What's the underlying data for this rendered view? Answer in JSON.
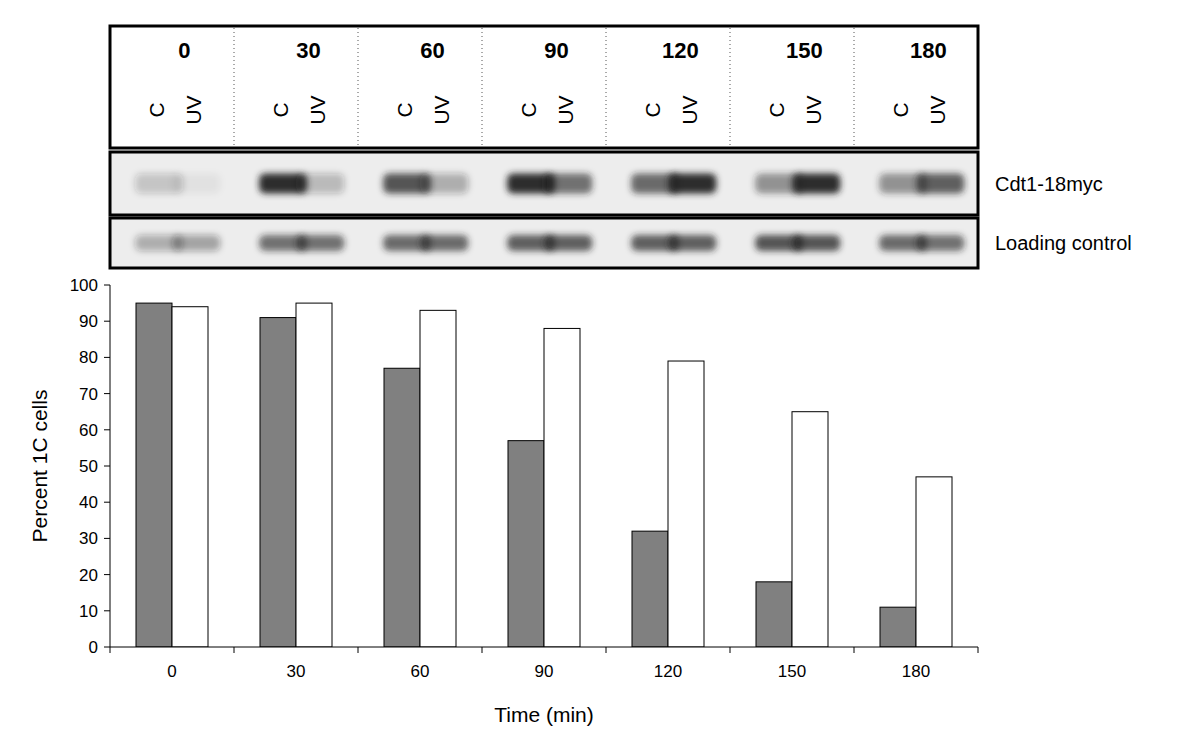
{
  "blot": {
    "times": [
      "0",
      "30",
      "60",
      "90",
      "120",
      "150",
      "180"
    ],
    "lane_labels": [
      "C",
      "UV"
    ],
    "bands": [
      {
        "label": "Cdt1-18myc",
        "intensity": [
          0.2,
          0.05,
          0.95,
          0.25,
          0.75,
          0.3,
          0.95,
          0.6,
          0.65,
          0.95,
          0.45,
          0.95,
          0.45,
          0.7
        ]
      },
      {
        "label": "Loading control",
        "intensity": [
          0.3,
          0.35,
          0.6,
          0.6,
          0.65,
          0.65,
          0.7,
          0.7,
          0.7,
          0.7,
          0.75,
          0.75,
          0.65,
          0.6
        ]
      }
    ]
  },
  "chart_data": {
    "type": "bar",
    "x_label": "Time (min)",
    "y_label": "Percent 1C cells",
    "categories": [
      "0",
      "30",
      "60",
      "90",
      "120",
      "150",
      "180"
    ],
    "series": [
      {
        "color": "#808080",
        "values": [
          95,
          91,
          77,
          57,
          32,
          18,
          11
        ]
      },
      {
        "color": "#ffffff",
        "values": [
          94,
          95,
          93,
          88,
          79,
          65,
          47
        ]
      }
    ],
    "ylim": [
      0,
      100
    ],
    "yticks": [
      0,
      10,
      20,
      30,
      40,
      50,
      60,
      70,
      80,
      90,
      100
    ],
    "grid": false
  }
}
